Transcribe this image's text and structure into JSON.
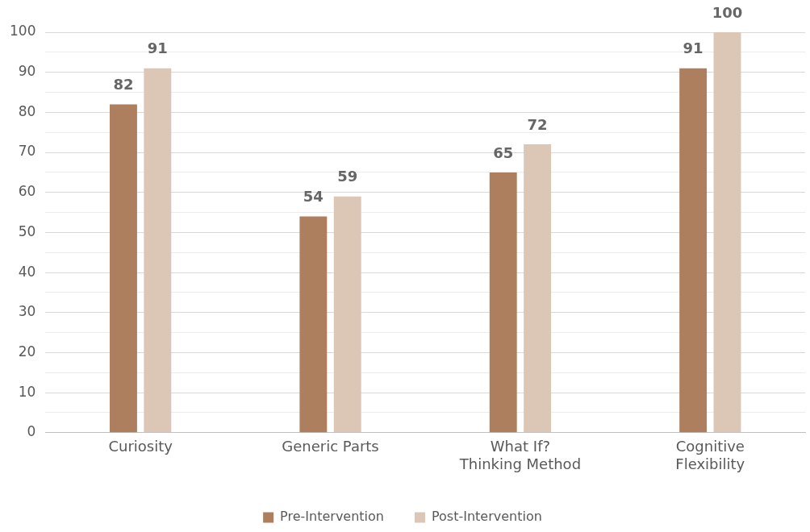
{
  "chart_data": {
    "type": "bar",
    "categories": [
      "Curiosity",
      "Generic Parts",
      "What If?\nThinking Method",
      "Cognitive\nFlexibility"
    ],
    "series": [
      {
        "name": "Pre-Intervention",
        "color": "#ad7f5e",
        "values": [
          82,
          54,
          65,
          91
        ]
      },
      {
        "name": "Post-Intervention",
        "color": "#dcc6b6",
        "values": [
          91,
          59,
          72,
          100
        ]
      }
    ],
    "ylim": [
      0,
      100
    ],
    "yticks": [
      0,
      {
        "value": 5,
        "label": null
      },
      10,
      {
        "value": 15,
        "label": null
      },
      20,
      {
        "value": 25,
        "label": null
      },
      30,
      {
        "value": 35,
        "label": null
      },
      40,
      {
        "value": 45,
        "label": null
      },
      50,
      {
        "value": 55,
        "label": null
      },
      60,
      {
        "value": 65,
        "label": null
      },
      70,
      {
        "value": 75,
        "label": null
      },
      80,
      {
        "value": 85,
        "label": null
      },
      90,
      {
        "value": 95,
        "label": null
      },
      100
    ],
    "grid": "y",
    "legend": "bottom",
    "data_labels": true
  }
}
